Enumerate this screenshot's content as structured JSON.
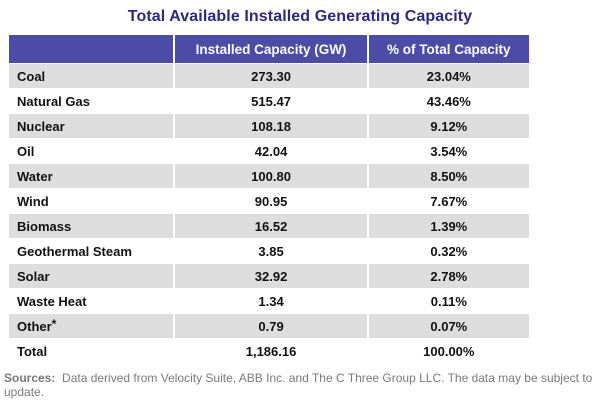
{
  "title": "Total Available Installed Generating Capacity",
  "table": {
    "headers": [
      "",
      "Installed Capacity (GW)",
      "% of Total Capacity"
    ],
    "rows": [
      {
        "source": "Coal",
        "capacity": "273.30",
        "percent": "23.04%"
      },
      {
        "source": "Natural Gas",
        "capacity": "515.47",
        "percent": "43.46%"
      },
      {
        "source": "Nuclear",
        "capacity": "108.18",
        "percent": "9.12%"
      },
      {
        "source": "Oil",
        "capacity": "42.04",
        "percent": "3.54%"
      },
      {
        "source": "Water",
        "capacity": "100.80",
        "percent": "8.50%"
      },
      {
        "source": "Wind",
        "capacity": "90.95",
        "percent": "7.67%"
      },
      {
        "source": "Biomass",
        "capacity": "16.52",
        "percent": "1.39%"
      },
      {
        "source": "Geothermal Steam",
        "capacity": "3.85",
        "percent": "0.32%"
      },
      {
        "source": "Solar",
        "capacity": "32.92",
        "percent": "2.78%"
      },
      {
        "source": "Waste Heat",
        "capacity": "1.34",
        "percent": "0.11%"
      },
      {
        "source": "Other",
        "capacity": "0.79",
        "percent": "0.07%",
        "footnote": "*"
      },
      {
        "source": "Total",
        "capacity": "1,186.16",
        "percent": "100.00%"
      }
    ]
  },
  "sources_note": {
    "label": "Sources:",
    "text": "Data derived from Velocity Suite, ABB Inc. and The C Three Group LLC.  The data may be subject to update."
  },
  "colors": {
    "title": "#2b2a7e",
    "header_bg": "#4a4ca8",
    "row_shade": "#dddddd"
  }
}
